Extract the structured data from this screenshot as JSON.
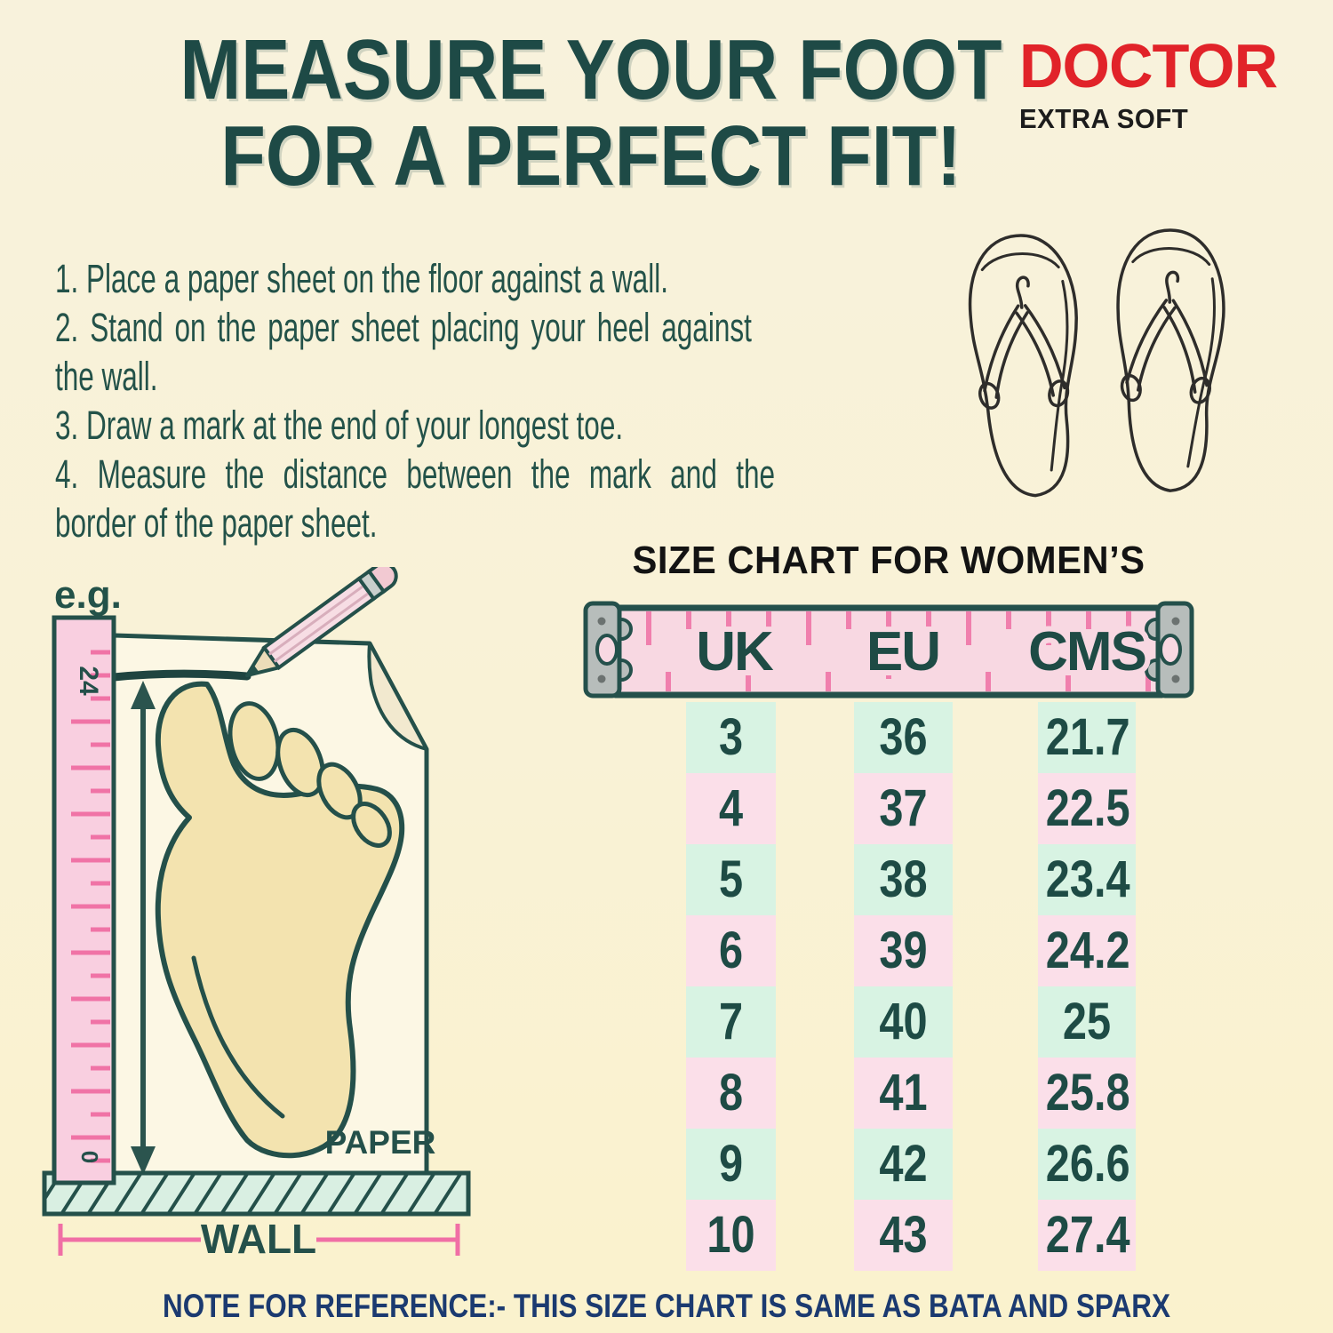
{
  "header": {
    "title_line1": "MEASURE YOUR FOOT",
    "title_line2": "FOR A PERFECT FIT!"
  },
  "brand": {
    "name": "DOCTOR",
    "tagline": "EXTRA SOFT",
    "brand_color": "#e12329"
  },
  "instructions": {
    "lines": [
      "1. Place a paper sheet on the floor against a wall.",
      "2. Stand on the paper sheet placing your heel against",
      "the wall.",
      "3. Draw a mark at the end of your longest toe.",
      "4. Measure the distance between the mark and the",
      "border of the paper sheet."
    ]
  },
  "diagram": {
    "example_label": "e.g.",
    "ruler_top_mark": "24",
    "ruler_bottom_mark": "0",
    "paper_label": "PAPER",
    "wall_label": "WALL"
  },
  "size_chart": {
    "title": "SIZE CHART FOR WOMEN’S",
    "columns": [
      "UK",
      "EU",
      "CMS"
    ],
    "rows": [
      {
        "uk": "3",
        "eu": "36",
        "cms": "21.7"
      },
      {
        "uk": "4",
        "eu": "37",
        "cms": "22.5"
      },
      {
        "uk": "5",
        "eu": "38",
        "cms": "23.4"
      },
      {
        "uk": "6",
        "eu": "39",
        "cms": "24.2"
      },
      {
        "uk": "7",
        "eu": "40",
        "cms": "25"
      },
      {
        "uk": "8",
        "eu": "41",
        "cms": "25.8"
      },
      {
        "uk": "9",
        "eu": "42",
        "cms": "26.6"
      },
      {
        "uk": "10",
        "eu": "43",
        "cms": "27.4"
      }
    ]
  },
  "footnote": "NOTE FOR REFERENCE:- THIS SIZE CHART IS SAME AS BATA AND SPARX",
  "colors": {
    "background": "#f9f2d6",
    "teal_text": "#1e4a46",
    "brand_red": "#e12329",
    "note_navy": "#1b3a70",
    "cell_mint": "#d8f3e3",
    "cell_pink": "#fbdfe9",
    "tape_pink": "#f8d8e2",
    "tape_tick_pink": "#f07fad",
    "ruler_pink": "#f9cfe0",
    "foot_tan": "#f3e3af"
  }
}
